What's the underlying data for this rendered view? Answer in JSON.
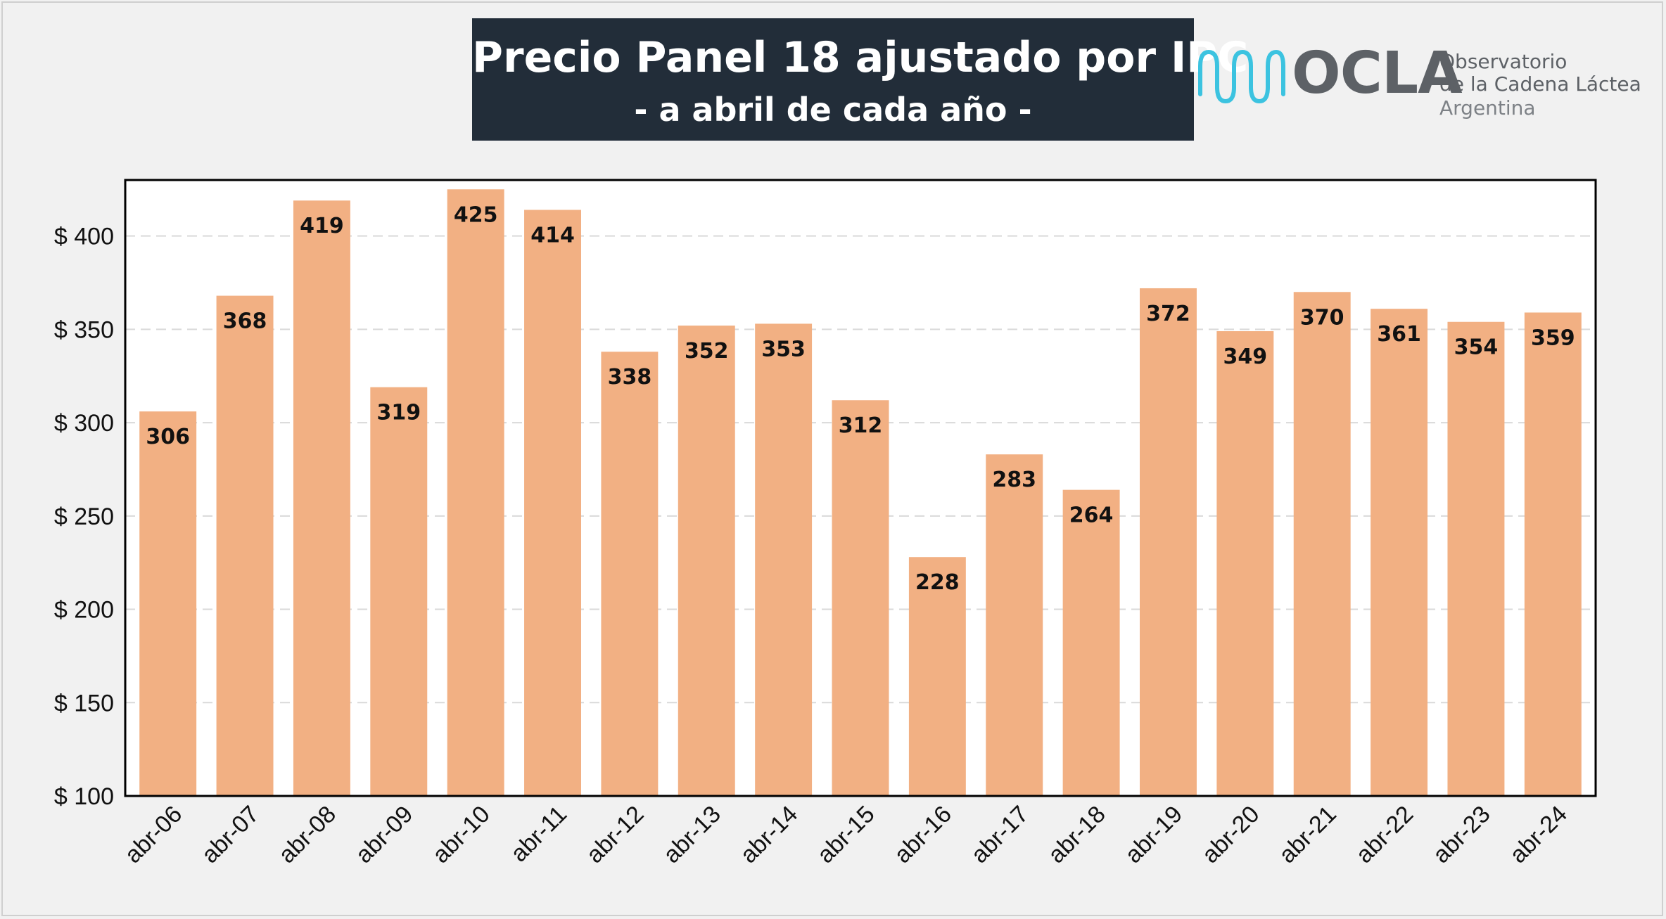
{
  "title": "Precio Panel 18 ajustado por IPC",
  "subtitle": "- a abril de cada año -",
  "logo": {
    "word": "OCLA",
    "line1": "Observatorio",
    "line2": "de la Cadena Láctea",
    "line3": "Argentina"
  },
  "colors": {
    "bar": "#f2b083",
    "title_bg": "#222d39",
    "plot_bg": "#ffffff",
    "grid": "#d9d9d9",
    "logo_wave": "#3cc3e0"
  },
  "chart_data": {
    "type": "bar",
    "categories": [
      "abr-06",
      "abr-07",
      "abr-08",
      "abr-09",
      "abr-10",
      "abr-11",
      "abr-12",
      "abr-13",
      "abr-14",
      "abr-15",
      "abr-16",
      "abr-17",
      "abr-18",
      "abr-19",
      "abr-20",
      "abr-21",
      "abr-22",
      "abr-23",
      "abr-24"
    ],
    "values": [
      306,
      368,
      419,
      319,
      425,
      414,
      338,
      352,
      353,
      312,
      228,
      283,
      264,
      372,
      349,
      370,
      361,
      354,
      359
    ],
    "ylim": [
      100,
      430
    ],
    "yticks": [
      100,
      150,
      200,
      250,
      300,
      350,
      400
    ],
    "ytick_labels": [
      "$ 100",
      "$ 150",
      "$ 200",
      "$ 250",
      "$ 300",
      "$ 350",
      "$ 400"
    ],
    "grid": true,
    "data_labels": true
  }
}
